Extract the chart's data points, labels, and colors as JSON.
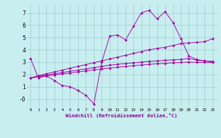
{
  "xlabel": "Windchill (Refroidissement éolien,°C)",
  "bg_color": "#c8eef0",
  "line_color": "#aa00aa",
  "grid_color": "#99cccc",
  "xlim": [
    -0.5,
    23.5
  ],
  "ylim": [
    -0.7,
    7.7
  ],
  "yticks": [
    0,
    1,
    2,
    3,
    4,
    5,
    6,
    7
  ],
  "ytick_labels": [
    "-0",
    "1",
    "2",
    "3",
    "4",
    "5",
    "6",
    "7"
  ],
  "line1_x": [
    0,
    1,
    2,
    3,
    4,
    5,
    6,
    7,
    8,
    9,
    10,
    11,
    12,
    13,
    14,
    15,
    16,
    17,
    18,
    19,
    20,
    21,
    22,
    23
  ],
  "line1_y": [
    3.3,
    1.7,
    1.9,
    1.5,
    1.1,
    1.0,
    0.7,
    0.3,
    -0.4,
    3.0,
    5.1,
    5.2,
    4.8,
    5.9,
    7.0,
    7.2,
    6.5,
    7.1,
    6.2,
    4.9,
    3.5,
    3.2,
    3.1,
    3.0
  ],
  "line2_x": [
    0,
    1,
    2,
    3,
    4,
    5,
    6,
    7,
    8,
    9,
    10,
    11,
    12,
    13,
    14,
    15,
    16,
    17,
    18,
    19,
    20,
    21,
    22,
    23
  ],
  "line2_y": [
    1.7,
    1.9,
    2.05,
    2.2,
    2.35,
    2.5,
    2.65,
    2.8,
    2.95,
    3.1,
    3.25,
    3.4,
    3.55,
    3.7,
    3.85,
    4.0,
    4.1,
    4.2,
    4.35,
    4.5,
    4.55,
    4.6,
    4.65,
    4.9
  ],
  "line3_x": [
    0,
    1,
    2,
    3,
    4,
    5,
    6,
    7,
    8,
    9,
    10,
    11,
    12,
    13,
    14,
    15,
    16,
    17,
    18,
    19,
    20,
    21,
    22,
    23
  ],
  "line3_y": [
    1.7,
    1.85,
    1.95,
    2.05,
    2.15,
    2.25,
    2.35,
    2.45,
    2.55,
    2.65,
    2.75,
    2.82,
    2.88,
    2.94,
    3.0,
    3.06,
    3.1,
    3.14,
    3.18,
    3.22,
    3.3,
    3.15,
    3.1,
    3.05
  ],
  "line4_x": [
    0,
    1,
    2,
    3,
    4,
    5,
    6,
    7,
    8,
    9,
    10,
    11,
    12,
    13,
    14,
    15,
    16,
    17,
    18,
    19,
    20,
    21,
    22,
    23
  ],
  "line4_y": [
    1.7,
    1.8,
    1.88,
    1.96,
    2.04,
    2.12,
    2.2,
    2.28,
    2.36,
    2.44,
    2.52,
    2.58,
    2.64,
    2.7,
    2.76,
    2.82,
    2.86,
    2.9,
    2.94,
    2.97,
    3.0,
    2.97,
    2.97,
    2.98
  ]
}
